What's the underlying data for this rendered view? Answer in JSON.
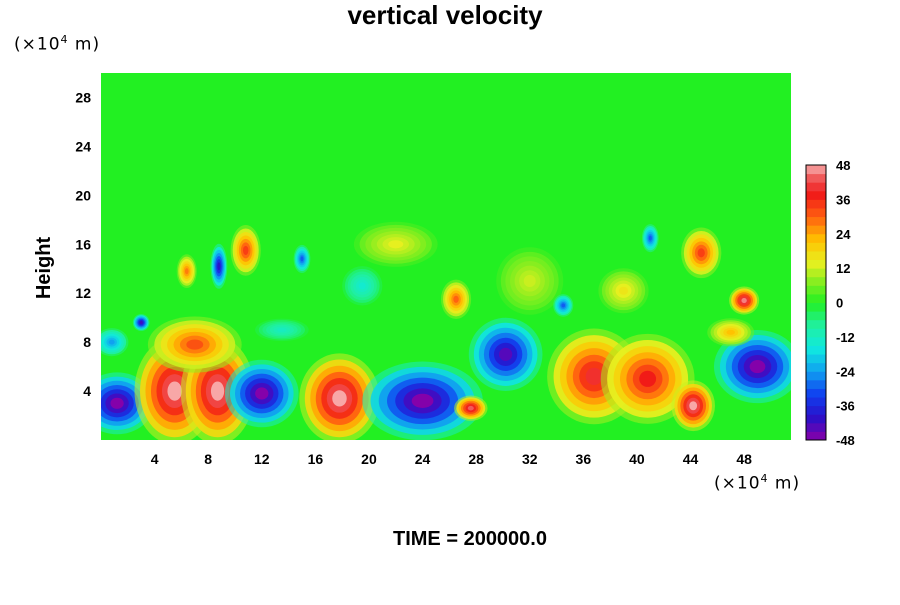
{
  "chart_data": {
    "type": "heatmap",
    "title": "vertical velocity",
    "ylabel": "Height",
    "xlabel": "",
    "x_unit": {
      "prefix": "(×10",
      "exp": "4",
      "suffix": " m)"
    },
    "y_unit": {
      "prefix": "(×10",
      "exp": "4",
      "suffix": " m)"
    },
    "xlim": [
      0,
      51.5
    ],
    "ylim": [
      0,
      30
    ],
    "x_ticks": [
      4,
      8,
      12,
      16,
      20,
      24,
      28,
      32,
      36,
      40,
      44,
      48
    ],
    "y_ticks": [
      4,
      8,
      12,
      16,
      20,
      24,
      28
    ],
    "background_value": 0,
    "features": [
      {
        "x": 1.2,
        "y": 3.0,
        "rx": 2.2,
        "ry": 2.2,
        "value": -48
      },
      {
        "x": 5.5,
        "y": 4.0,
        "rx": 2.4,
        "ry": 3.8,
        "value": 48
      },
      {
        "x": 8.7,
        "y": 4.0,
        "rx": 2.2,
        "ry": 3.8,
        "value": 48
      },
      {
        "x": 7.0,
        "y": 7.8,
        "rx": 2.8,
        "ry": 2.0,
        "value": 32
      },
      {
        "x": 12.0,
        "y": 3.8,
        "rx": 2.2,
        "ry": 2.4,
        "value": -48
      },
      {
        "x": 17.8,
        "y": 3.4,
        "rx": 2.4,
        "ry": 3.2,
        "value": 48
      },
      {
        "x": 24.0,
        "y": 3.2,
        "rx": 3.6,
        "ry": 2.8,
        "value": -48
      },
      {
        "x": 27.6,
        "y": 2.6,
        "rx": 1.0,
        "ry": 0.9,
        "value": 44
      },
      {
        "x": 30.2,
        "y": 7.0,
        "rx": 2.2,
        "ry": 2.6,
        "value": -44
      },
      {
        "x": 36.8,
        "y": 5.2,
        "rx": 2.8,
        "ry": 3.4,
        "value": 40
      },
      {
        "x": 40.8,
        "y": 5.0,
        "rx": 2.8,
        "ry": 3.2,
        "value": 38
      },
      {
        "x": 44.2,
        "y": 2.8,
        "rx": 1.3,
        "ry": 1.8,
        "value": 48
      },
      {
        "x": 49.0,
        "y": 6.0,
        "rx": 2.6,
        "ry": 2.6,
        "value": -48
      },
      {
        "x": 48.0,
        "y": 11.4,
        "rx": 0.9,
        "ry": 1.0,
        "value": 46
      },
      {
        "x": 44.8,
        "y": 15.3,
        "rx": 1.2,
        "ry": 1.8,
        "value": 34
      },
      {
        "x": 10.8,
        "y": 15.5,
        "rx": 0.9,
        "ry": 1.8,
        "value": 34
      },
      {
        "x": 8.8,
        "y": 14.2,
        "rx": 0.5,
        "ry": 1.6,
        "value": -40
      },
      {
        "x": 6.4,
        "y": 13.8,
        "rx": 0.6,
        "ry": 1.2,
        "value": 28
      },
      {
        "x": 26.5,
        "y": 11.5,
        "rx": 0.9,
        "ry": 1.4,
        "value": 30
      },
      {
        "x": 0.8,
        "y": 8.0,
        "rx": 1.0,
        "ry": 1.0,
        "value": -24
      },
      {
        "x": 3.0,
        "y": 9.6,
        "rx": 0.5,
        "ry": 0.6,
        "value": -42
      },
      {
        "x": 39.0,
        "y": 12.2,
        "rx": 1.5,
        "ry": 1.6,
        "value": 16
      },
      {
        "x": 22.0,
        "y": 16.0,
        "rx": 2.5,
        "ry": 1.6,
        "value": 14
      },
      {
        "x": 15.0,
        "y": 14.8,
        "rx": 0.5,
        "ry": 1.0,
        "value": -30
      },
      {
        "x": 32.0,
        "y": 13.0,
        "rx": 2.0,
        "ry": 2.4,
        "value": 12
      },
      {
        "x": 19.5,
        "y": 12.6,
        "rx": 1.2,
        "ry": 1.4,
        "value": -14
      },
      {
        "x": 41.0,
        "y": 16.5,
        "rx": 0.5,
        "ry": 1.0,
        "value": -30
      },
      {
        "x": 34.5,
        "y": 11.0,
        "rx": 0.6,
        "ry": 0.8,
        "value": -30
      },
      {
        "x": 47.0,
        "y": 8.8,
        "rx": 1.4,
        "ry": 1.0,
        "value": 22
      },
      {
        "x": 13.5,
        "y": 9.0,
        "rx": 1.6,
        "ry": 0.8,
        "value": -12
      }
    ],
    "colorbar": {
      "min": -48,
      "max": 48,
      "tick_labels": [
        "48",
        "36",
        "24",
        "12",
        "0",
        "-12",
        "-24",
        "-36",
        "-48"
      ],
      "tick_values": [
        48,
        36,
        24,
        12,
        0,
        -12,
        -24,
        -36,
        -48
      ],
      "stops": [
        {
          "v": -48,
          "color": "#8a00a8"
        },
        {
          "v": -40,
          "color": "#2a10c8"
        },
        {
          "v": -32,
          "color": "#1040f0"
        },
        {
          "v": -24,
          "color": "#10a0f0"
        },
        {
          "v": -16,
          "color": "#10e8e0"
        },
        {
          "v": -8,
          "color": "#20f0a0"
        },
        {
          "v": 0,
          "color": "#22f022"
        },
        {
          "v": 8,
          "color": "#90ee20"
        },
        {
          "v": 14,
          "color": "#e8f020"
        },
        {
          "v": 22,
          "color": "#ffc000"
        },
        {
          "v": 30,
          "color": "#ff6010"
        },
        {
          "v": 38,
          "color": "#f01818"
        },
        {
          "v": 44,
          "color": "#f06060"
        },
        {
          "v": 48,
          "color": "#f8b0b0"
        }
      ]
    }
  },
  "footer": {
    "time_label": "TIME = 200000.0"
  }
}
